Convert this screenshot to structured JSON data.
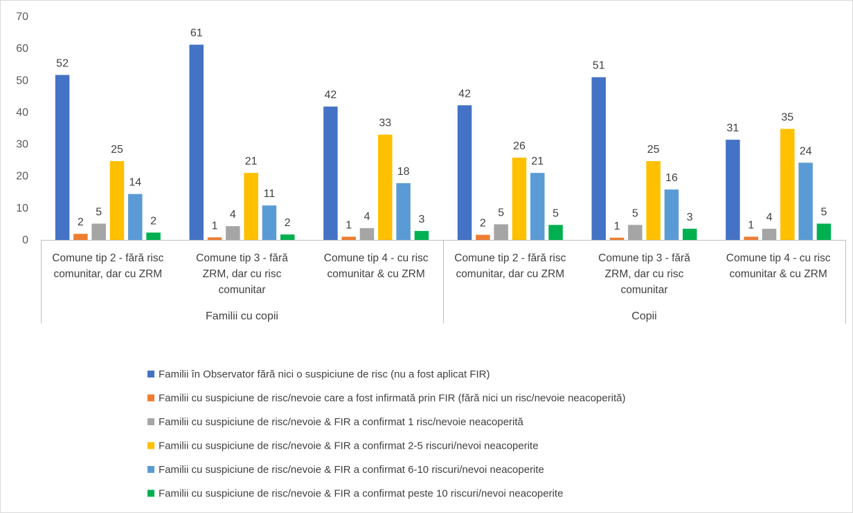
{
  "chart_data": {
    "type": "bar",
    "title": "",
    "xlabel": "",
    "ylabel": "",
    "ylim": [
      0,
      70
    ],
    "yticks": [
      0,
      10,
      20,
      30,
      40,
      50,
      60,
      70
    ],
    "grid": false,
    "legend_position": "bottom",
    "groups": [
      {
        "label": "Familii cu copii",
        "categories": [
          "Comune tip 2 - fără risc comunitar, dar cu ZRM",
          "Comune tip 3  - fără ZRM, dar cu risc comunitar",
          "Comune tip 4 - cu risc comunitar & cu ZRM"
        ]
      },
      {
        "label": "Copii",
        "categories": [
          "Comune tip 2 - fără risc comunitar, dar cu ZRM",
          "Comune tip 3  - fără ZRM, dar cu risc comunitar",
          "Comune tip 4 - cu risc comunitar & cu ZRM"
        ]
      }
    ],
    "category_lines": [
      [
        "Comune tip 2 - fără risc",
        "comunitar, dar cu ZRM"
      ],
      [
        "Comune tip 3  - fără",
        "ZRM, dar cu risc",
        "comunitar"
      ],
      [
        "Comune tip 4 - cu risc",
        "comunitar & cu ZRM"
      ],
      [
        "Comune tip 2 - fără risc",
        "comunitar, dar cu ZRM"
      ],
      [
        "Comune tip 3  - fără",
        "ZRM, dar cu risc",
        "comunitar"
      ],
      [
        "Comune tip 4 - cu risc",
        "comunitar & cu ZRM"
      ]
    ],
    "series": [
      {
        "name": "Familii în Observator fără nici o suspiciune de risc (nu a fost aplicat FIR)",
        "color": "#4472C4",
        "values": [
          51.7,
          61.2,
          41.8,
          42.2,
          51.0,
          31.4
        ],
        "labels": [
          "52",
          "61",
          "42",
          "42",
          "51",
          "31"
        ]
      },
      {
        "name": "Familii cu suspiciune de risc/nevoie care a fost infirmată prin FIR (fără nici un risc/nevoie neacoperită)",
        "color": "#ED7D31",
        "values": [
          1.9,
          0.8,
          1.0,
          1.6,
          0.7,
          1.0
        ],
        "labels": [
          "2",
          "1",
          "1",
          "2",
          "1",
          "1"
        ]
      },
      {
        "name": "Familii cu suspiciune de risc/nevoie & FIR a confirmat 1 risc/nevoie neacoperită",
        "color": "#A5A5A5",
        "values": [
          5.1,
          4.3,
          3.7,
          4.9,
          4.7,
          3.5
        ],
        "labels": [
          "5",
          "4",
          "4",
          "5",
          "5",
          "4"
        ]
      },
      {
        "name": "Familii cu suspiciune de risc/nevoie & FIR a confirmat 2-5 riscuri/nevoi neacoperite",
        "color": "#FFC000",
        "values": [
          24.7,
          21.0,
          33.0,
          25.8,
          24.7,
          34.8
        ],
        "labels": [
          "25",
          "21",
          "33",
          "26",
          "25",
          "35"
        ]
      },
      {
        "name": "Familii cu suspiciune de risc/nevoie & FIR a confirmat 6-10 riscuri/nevoi neacoperite",
        "color": "#5B9BD5",
        "values": [
          14.4,
          10.8,
          17.8,
          21.0,
          15.8,
          24.2
        ],
        "labels": [
          "14",
          "11",
          "18",
          "21",
          "16",
          "24"
        ]
      },
      {
        "name": "Familii cu suspiciune de risc/nevoie & FIR a confirmat peste 10 riscuri/nevoi neacoperite",
        "color": "#00B050",
        "values": [
          2.3,
          1.7,
          2.8,
          4.7,
          3.5,
          5.1
        ],
        "labels": [
          "2",
          "2",
          "3",
          "5",
          "3",
          "5"
        ]
      }
    ]
  }
}
